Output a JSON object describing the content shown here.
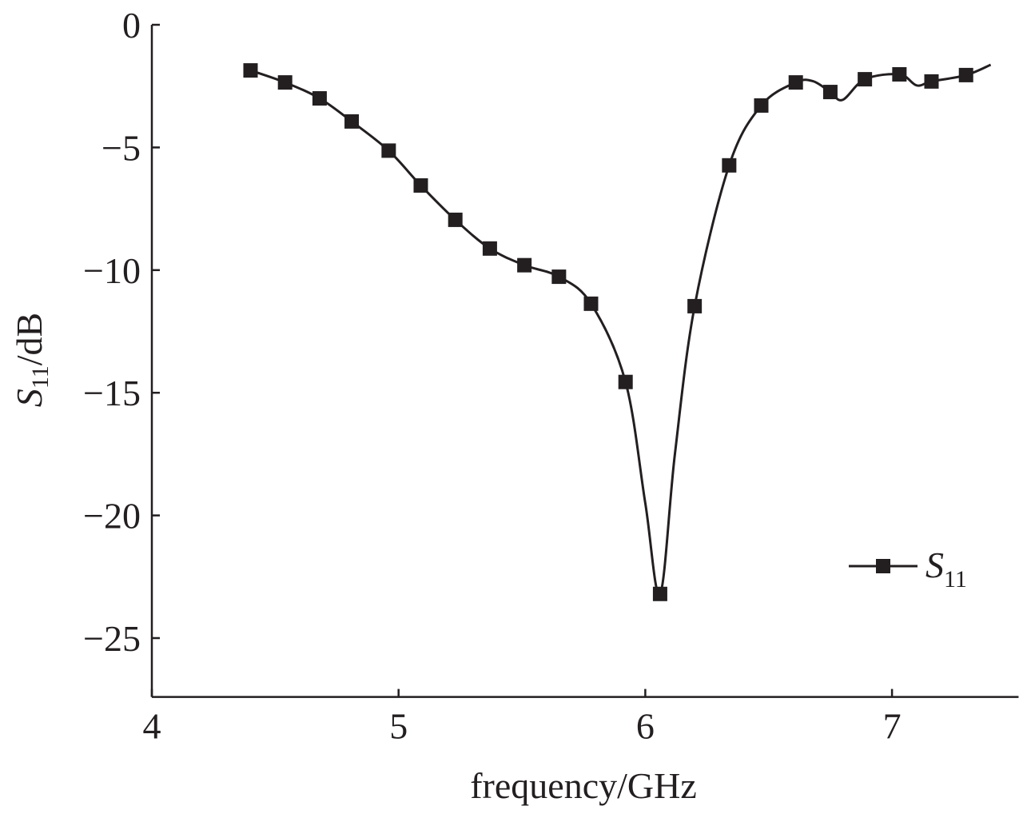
{
  "chart_data": {
    "type": "line",
    "title": "",
    "xlabel": "frequency/GHz",
    "ylabel_main": "S",
    "ylabel_sub": "11",
    "ylabel_unit": "/dB",
    "xlim": [
      4,
      7.5
    ],
    "ylim": [
      -27.4,
      0
    ],
    "xticks": [
      4,
      5,
      6,
      7
    ],
    "xtick_labels": [
      "4",
      "5",
      "6",
      "7"
    ],
    "yticks": [
      0,
      -5,
      -10,
      -15,
      -20,
      -25
    ],
    "ytick_labels": [
      "0",
      "−5",
      "−10",
      "−15",
      "−20",
      "−25"
    ],
    "grid": false,
    "legend": {
      "placement": "bottom-right",
      "label_main": "S",
      "label_sub": "11"
    },
    "series": [
      {
        "name": "S11",
        "color": "#231f20",
        "marker": "square",
        "x": [
          4.4,
          4.54,
          4.68,
          4.81,
          4.96,
          5.09,
          5.23,
          5.37,
          5.51,
          5.65,
          5.78,
          5.92,
          6.06,
          6.2,
          6.34,
          6.47,
          6.61,
          6.75,
          6.89,
          7.03,
          7.16,
          7.3
        ],
        "y": [
          -1.86,
          -2.35,
          -3.0,
          -3.94,
          -5.13,
          -6.55,
          -7.95,
          -9.12,
          -9.8,
          -10.27,
          -11.37,
          -14.56,
          -23.2,
          -11.47,
          -5.73,
          -3.29,
          -2.35,
          -2.74,
          -2.22,
          -2.02,
          -2.31,
          -2.05
        ],
        "curve_x": [
          4.4,
          4.54,
          4.68,
          4.81,
          4.96,
          5.09,
          5.23,
          5.37,
          5.51,
          5.65,
          5.78,
          5.92,
          6.0,
          6.06,
          6.12,
          6.2,
          6.34,
          6.47,
          6.61,
          6.68,
          6.75,
          6.8,
          6.89,
          7.03,
          7.1,
          7.16,
          7.3,
          7.4
        ],
        "curve_y": [
          -1.86,
          -2.35,
          -3.0,
          -3.94,
          -5.13,
          -6.55,
          -7.95,
          -9.12,
          -9.8,
          -10.27,
          -11.37,
          -14.56,
          -19.5,
          -23.2,
          -17.5,
          -11.47,
          -5.73,
          -3.29,
          -2.35,
          -2.3,
          -2.74,
          -3.06,
          -2.22,
          -2.02,
          -2.47,
          -2.31,
          -2.05,
          -1.63
        ]
      }
    ]
  }
}
